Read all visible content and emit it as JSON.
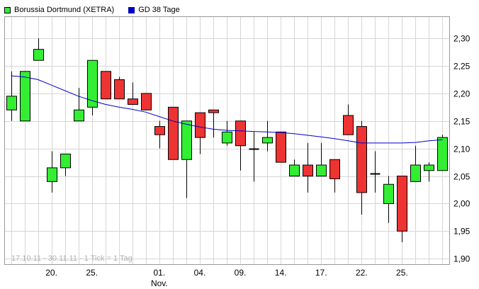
{
  "legend": [
    {
      "label": "Borussia Dortmund (XETRA)",
      "color": "#33ee33"
    },
    {
      "label": "GD 38 Tage",
      "color": "#0000cc"
    }
  ],
  "range_note": "17.10.11 - 30.11.11 · 1 Tick = 1 Tag",
  "chart_data": {
    "type": "candlestick",
    "title": "",
    "ylim": [
      1.89,
      2.34
    ],
    "grid": true,
    "y_axis_side": "right",
    "up_color": "#33ee33",
    "down_color": "#ee3333",
    "ma_color": "#0000cc",
    "y_ticks": [
      {
        "value": 2.3,
        "label": "2,30"
      },
      {
        "value": 2.25,
        "label": "2,25"
      },
      {
        "value": 2.2,
        "label": "2,20"
      },
      {
        "value": 2.15,
        "label": "2,15"
      },
      {
        "value": 2.1,
        "label": "2,10"
      },
      {
        "value": 2.05,
        "label": "2,05"
      },
      {
        "value": 2.0,
        "label": "2,00"
      },
      {
        "value": 1.95,
        "label": "1,95"
      },
      {
        "value": 1.9,
        "label": "1,90"
      }
    ],
    "x_ticks": [
      {
        "index": 3,
        "label": "20."
      },
      {
        "index": 6,
        "label": "25."
      },
      {
        "index": 11,
        "label": "01.",
        "sublabel": "Nov."
      },
      {
        "index": 14,
        "label": "04."
      },
      {
        "index": 17,
        "label": "09."
      },
      {
        "index": 20,
        "label": "14."
      },
      {
        "index": 23,
        "label": "17."
      },
      {
        "index": 26,
        "label": "22."
      },
      {
        "index": 29,
        "label": "25."
      }
    ],
    "candles": [
      {
        "o": 2.17,
        "h": 2.24,
        "l": 2.15,
        "c": 2.195
      },
      {
        "o": 2.15,
        "h": 2.24,
        "l": 2.15,
        "c": 2.24
      },
      {
        "o": 2.26,
        "h": 2.3,
        "l": 2.26,
        "c": 2.28
      },
      {
        "o": 2.04,
        "h": 2.095,
        "l": 2.02,
        "c": 2.065
      },
      {
        "o": 2.065,
        "h": 2.09,
        "l": 2.05,
        "c": 2.09
      },
      {
        "o": 2.15,
        "h": 2.21,
        "l": 2.15,
        "c": 2.17
      },
      {
        "o": 2.175,
        "h": 2.26,
        "l": 2.16,
        "c": 2.26
      },
      {
        "o": 2.24,
        "h": 2.24,
        "l": 2.19,
        "c": 2.19
      },
      {
        "o": 2.225,
        "h": 2.23,
        "l": 2.19,
        "c": 2.19
      },
      {
        "o": 2.19,
        "h": 2.22,
        "l": 2.18,
        "c": 2.18
      },
      {
        "o": 2.2,
        "h": 2.2,
        "l": 2.17,
        "c": 2.17
      },
      {
        "o": 2.14,
        "h": 2.15,
        "l": 2.1,
        "c": 2.125
      },
      {
        "o": 2.175,
        "h": 2.175,
        "l": 2.08,
        "c": 2.08
      },
      {
        "o": 2.08,
        "h": 2.15,
        "l": 2.01,
        "c": 2.15
      },
      {
        "o": 2.165,
        "h": 2.165,
        "l": 2.09,
        "c": 2.12
      },
      {
        "o": 2.17,
        "h": 2.17,
        "l": 2.12,
        "c": 2.165
      },
      {
        "o": 2.11,
        "h": 2.15,
        "l": 2.105,
        "c": 2.13
      },
      {
        "o": 2.15,
        "h": 2.15,
        "l": 2.06,
        "c": 2.105
      },
      {
        "o": 2.1,
        "h": 2.13,
        "l": 2.04,
        "c": 2.1
      },
      {
        "o": 2.11,
        "h": 2.15,
        "l": 2.095,
        "c": 2.12
      },
      {
        "o": 2.13,
        "h": 2.13,
        "l": 2.075,
        "c": 2.075
      },
      {
        "o": 2.05,
        "h": 2.08,
        "l": 2.05,
        "c": 2.07
      },
      {
        "o": 2.07,
        "h": 2.11,
        "l": 2.02,
        "c": 2.05
      },
      {
        "o": 2.05,
        "h": 2.11,
        "l": 2.05,
        "c": 2.07
      },
      {
        "o": 2.08,
        "h": 2.08,
        "l": 2.02,
        "c": 2.045
      },
      {
        "o": 2.16,
        "h": 2.18,
        "l": 2.125,
        "c": 2.125
      },
      {
        "o": 2.14,
        "h": 2.15,
        "l": 1.98,
        "c": 2.02
      },
      {
        "o": 2.055,
        "h": 2.095,
        "l": 2.02,
        "c": 2.055
      },
      {
        "o": 2.0,
        "h": 2.05,
        "l": 1.965,
        "c": 2.035
      },
      {
        "o": 2.05,
        "h": 2.05,
        "l": 1.93,
        "c": 1.95
      },
      {
        "o": 2.04,
        "h": 2.105,
        "l": 2.04,
        "c": 2.07
      },
      {
        "o": 2.06,
        "h": 2.075,
        "l": 2.04,
        "c": 2.07
      },
      {
        "o": 2.06,
        "h": 2.125,
        "l": 2.06,
        "c": 2.12
      }
    ],
    "moving_average": {
      "name": "GD 38 Tage",
      "values": [
        2.232,
        2.23,
        2.225,
        2.215,
        2.205,
        2.195,
        2.187,
        2.18,
        2.175,
        2.171,
        2.166,
        2.158,
        2.15,
        2.144,
        2.139,
        2.135,
        2.133,
        2.132,
        2.131,
        2.13,
        2.129,
        2.127,
        2.124,
        2.121,
        2.118,
        2.114,
        2.11,
        2.11,
        2.11,
        2.11,
        2.111,
        2.114,
        2.116
      ]
    }
  }
}
